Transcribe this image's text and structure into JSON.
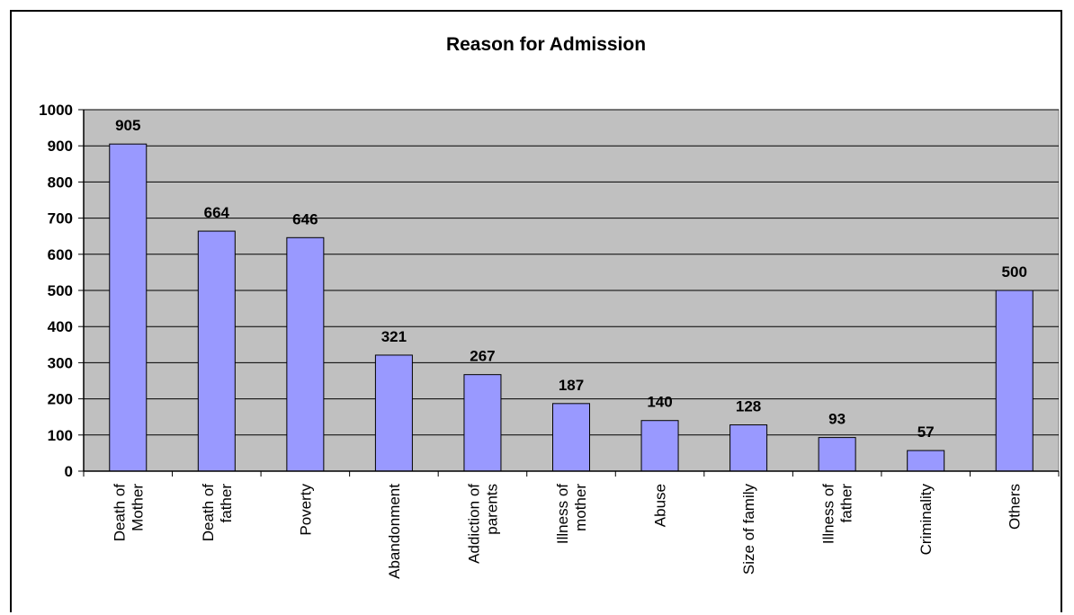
{
  "chart_data": {
    "type": "bar",
    "title": "Reason for Admission",
    "xlabel": "",
    "ylabel": "",
    "categories": [
      [
        "Death of",
        "Mother"
      ],
      [
        "Death of",
        "father"
      ],
      [
        "Poverty"
      ],
      [
        "Abandonment"
      ],
      [
        "Addiction of",
        "parents"
      ],
      [
        "Illness of",
        "mother"
      ],
      [
        "Abuse"
      ],
      [
        "Size of family"
      ],
      [
        "Illness of",
        "father"
      ],
      [
        "Criminality"
      ],
      [
        "Others"
      ]
    ],
    "values": [
      905,
      664,
      646,
      321,
      267,
      187,
      140,
      128,
      93,
      57,
      500
    ],
    "ylim": [
      0,
      1000
    ],
    "yticks": [
      0,
      100,
      200,
      300,
      400,
      500,
      600,
      700,
      800,
      900,
      1000
    ],
    "grid": true,
    "legend": "none",
    "colors": {
      "bar_fill": "#9999ff",
      "plot_background": "#c0c0c0",
      "gridline": "#000000",
      "text": "#000000"
    }
  }
}
